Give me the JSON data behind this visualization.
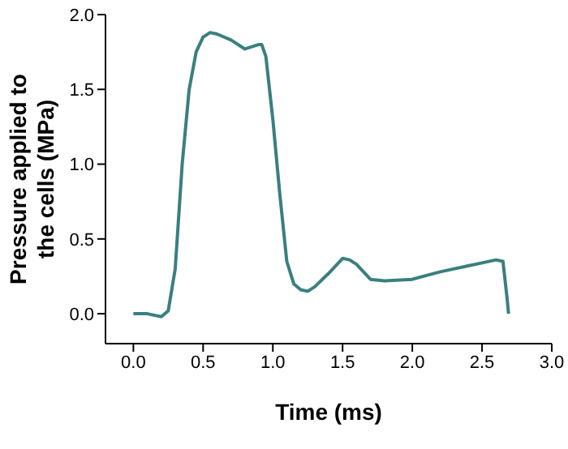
{
  "chart_data": {
    "type": "line",
    "xlabel": "Time (ms)",
    "ylabel": "Pressure applied to the cells (MPa)",
    "xlim": [
      -0.2,
      3.0
    ],
    "xticks": [
      {
        "value": 0,
        "label": "0.0"
      },
      {
        "value": 0.5,
        "label": "0.5"
      },
      {
        "value": 1,
        "label": "1.0"
      },
      {
        "value": 1.5,
        "label": "1.5"
      },
      {
        "value": 2,
        "label": "2.0"
      },
      {
        "value": 2.5,
        "label": "2.5"
      },
      {
        "value": 3,
        "label": "3.0"
      }
    ],
    "ylim": [
      -0.2,
      2.0
    ],
    "yticks": [
      {
        "value": 0,
        "label": "0.0"
      },
      {
        "value": 0.5,
        "label": "0.5"
      },
      {
        "value": 1,
        "label": "1.0"
      },
      {
        "value": 1.5,
        "label": "1.5"
      },
      {
        "value": 2,
        "label": "2.0"
      }
    ],
    "grid": false,
    "legend": false,
    "marker": "none",
    "line_style": "solid",
    "series": [
      {
        "color": "#3a7f7f",
        "x": [
          0,
          0.1,
          0.2,
          0.25,
          0.3,
          0.35,
          0.4,
          0.45,
          0.5,
          0.55,
          0.6,
          0.7,
          0.8,
          0.9,
          0.92,
          0.95,
          1.0,
          1.05,
          1.1,
          1.15,
          1.2,
          1.25,
          1.3,
          1.4,
          1.5,
          1.55,
          1.6,
          1.7,
          1.8,
          2.0,
          2.2,
          2.4,
          2.5,
          2.6,
          2.65,
          2.68,
          2.69
        ],
        "values": [
          0,
          0,
          -0.02,
          0.02,
          0.3,
          1.0,
          1.5,
          1.75,
          1.85,
          1.88,
          1.87,
          1.83,
          1.77,
          1.8,
          1.8,
          1.72,
          1.3,
          0.8,
          0.35,
          0.2,
          0.16,
          0.15,
          0.18,
          0.27,
          0.37,
          0.36,
          0.33,
          0.23,
          0.22,
          0.23,
          0.28,
          0.32,
          0.34,
          0.36,
          0.35,
          0.1,
          0
        ]
      }
    ]
  }
}
